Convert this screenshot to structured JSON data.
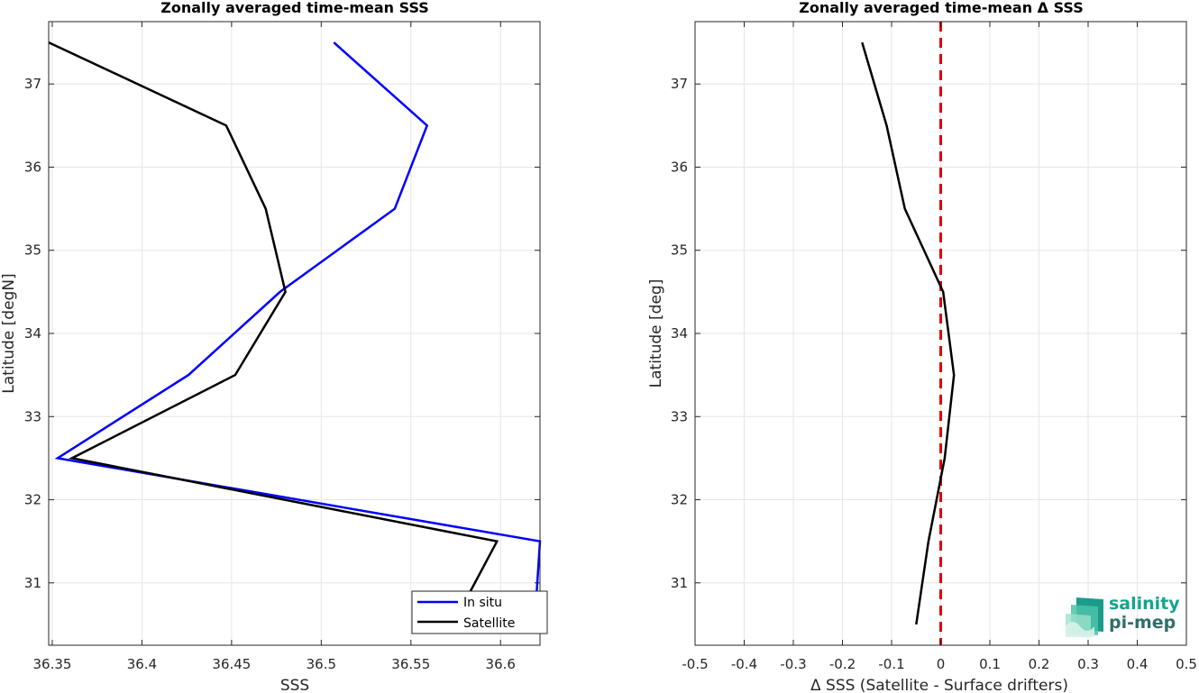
{
  "chart_data": [
    {
      "type": "line",
      "title": "Zonally averaged time-mean SSS",
      "xlabel": "SSS",
      "ylabel": "Latitude [degN]",
      "xlim": [
        36.348,
        36.622
      ],
      "ylim": [
        30.25,
        37.75
      ],
      "xticks": [
        36.35,
        36.4,
        36.45,
        36.5,
        36.55,
        36.6
      ],
      "xtick_labels": [
        "36.35",
        "36.4",
        "36.45",
        "36.5",
        "36.55",
        "36.6"
      ],
      "yticks": [
        31,
        32,
        33,
        34,
        35,
        36,
        37
      ],
      "ytick_labels": [
        "31",
        "32",
        "33",
        "34",
        "35",
        "36",
        "37"
      ],
      "grid": true,
      "legend_position": "bottom-right",
      "series": [
        {
          "name": "In situ",
          "color": "#0000ff",
          "points": [
            [
              36.507,
              37.5
            ],
            [
              36.559,
              36.5
            ],
            [
              36.541,
              35.5
            ],
            [
              36.477,
              34.5
            ],
            [
              36.426,
              33.5
            ],
            [
              36.353,
              32.5
            ],
            [
              36.622,
              31.5
            ],
            [
              36.619,
              30.5
            ]
          ]
        },
        {
          "name": "Satellite",
          "color": "#000000",
          "points": [
            [
              36.348,
              37.5
            ],
            [
              36.447,
              36.5
            ],
            [
              36.469,
              35.5
            ],
            [
              36.48,
              34.5
            ],
            [
              36.452,
              33.5
            ],
            [
              36.361,
              32.5
            ],
            [
              36.598,
              31.5
            ],
            [
              36.582,
              30.85
            ]
          ]
        }
      ]
    },
    {
      "type": "line",
      "title": "Zonally averaged time-mean Δ SSS",
      "xlabel": "Δ SSS (Satellite - Surface drifters)",
      "ylabel": "Latitude [deg]",
      "xlim": [
        -0.5,
        0.5
      ],
      "ylim": [
        30.25,
        37.75
      ],
      "xticks": [
        -0.5,
        -0.4,
        -0.3,
        -0.2,
        -0.1,
        0,
        0.1,
        0.2,
        0.3,
        0.4,
        0.5
      ],
      "xtick_labels": [
        "-0.5",
        "-0.4",
        "-0.3",
        "-0.2",
        "-0.1",
        "0",
        "0.1",
        "0.2",
        "0.3",
        "0.4",
        "0.5"
      ],
      "yticks": [
        31,
        32,
        33,
        34,
        35,
        36,
        37
      ],
      "ytick_labels": [
        "31",
        "32",
        "33",
        "34",
        "35",
        "36",
        "37"
      ],
      "grid": true,
      "reference_line": {
        "x": 0,
        "color": "#e00000",
        "style": "dashed"
      },
      "series": [
        {
          "color": "#000000",
          "points": [
            [
              -0.16,
              37.5
            ],
            [
              -0.11,
              36.5
            ],
            [
              -0.073,
              35.5
            ],
            [
              0.005,
              34.5
            ],
            [
              0.027,
              33.5
            ],
            [
              0.008,
              32.5
            ],
            [
              -0.025,
              31.5
            ],
            [
              -0.05,
              30.5
            ]
          ]
        }
      ]
    }
  ],
  "logo": {
    "line1": "salinity",
    "line2": "pi-mep"
  },
  "colors": {
    "axis": "#262626",
    "grid": "#e6e6e6"
  }
}
